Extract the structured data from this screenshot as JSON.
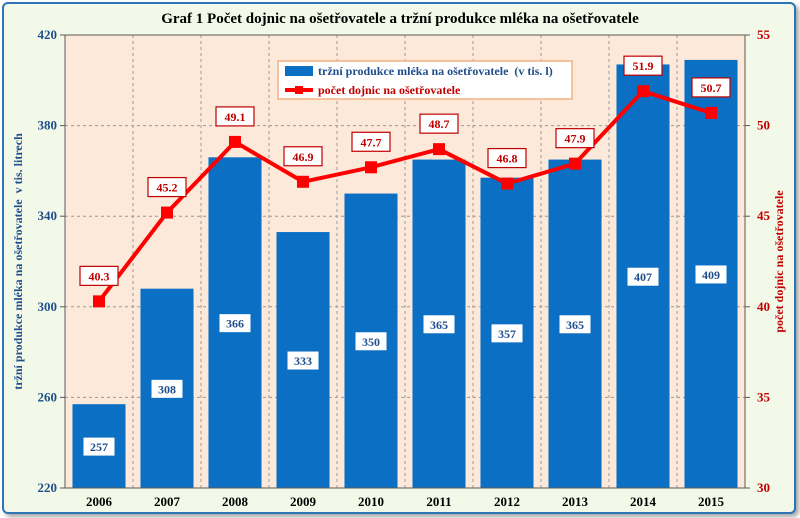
{
  "chart_data": {
    "type": "bar",
    "title": "Graf 1 Počet dojnic na ošetřovatele a tržní produkce mléka na ošetřovatele",
    "categories": [
      "2006",
      "2007",
      "2008",
      "2009",
      "2010",
      "2011",
      "2012",
      "2013",
      "2014",
      "2015"
    ],
    "ylabel": "tržní produkce mléka na ošetřovatele  v tis. litrech",
    "y2label": "počet dojnic na ošetřovatele",
    "ylim": [
      220,
      420
    ],
    "yticks": [
      220,
      260,
      300,
      340,
      380,
      420
    ],
    "y2lim": [
      30,
      55
    ],
    "y2ticks": [
      30,
      35,
      40,
      45,
      50,
      55
    ],
    "grid": true,
    "legend_position": "top-center",
    "series": [
      {
        "name": "tržní produkce mléka na ošetřovatele  (v tis. l)",
        "type": "bar",
        "axis": "left",
        "color": "#0b6fc4",
        "values": [
          257,
          308,
          366,
          333,
          350,
          365,
          357,
          365,
          407,
          409
        ],
        "labels": [
          "257",
          "308",
          "366",
          "333",
          "350",
          "365",
          "357",
          "365",
          "407",
          "409"
        ]
      },
      {
        "name": "počet dojnic na ošetřovatele",
        "type": "line",
        "axis": "right",
        "color": "#ff0000",
        "values": [
          40.3,
          45.2,
          49.1,
          46.9,
          47.7,
          48.7,
          46.8,
          47.9,
          51.9,
          50.7
        ],
        "labels": [
          "40.3",
          "45.2",
          "49.1",
          "46.9",
          "47.7",
          "48.7",
          "46.8",
          "47.9",
          "51.9",
          "50.7"
        ]
      }
    ]
  }
}
